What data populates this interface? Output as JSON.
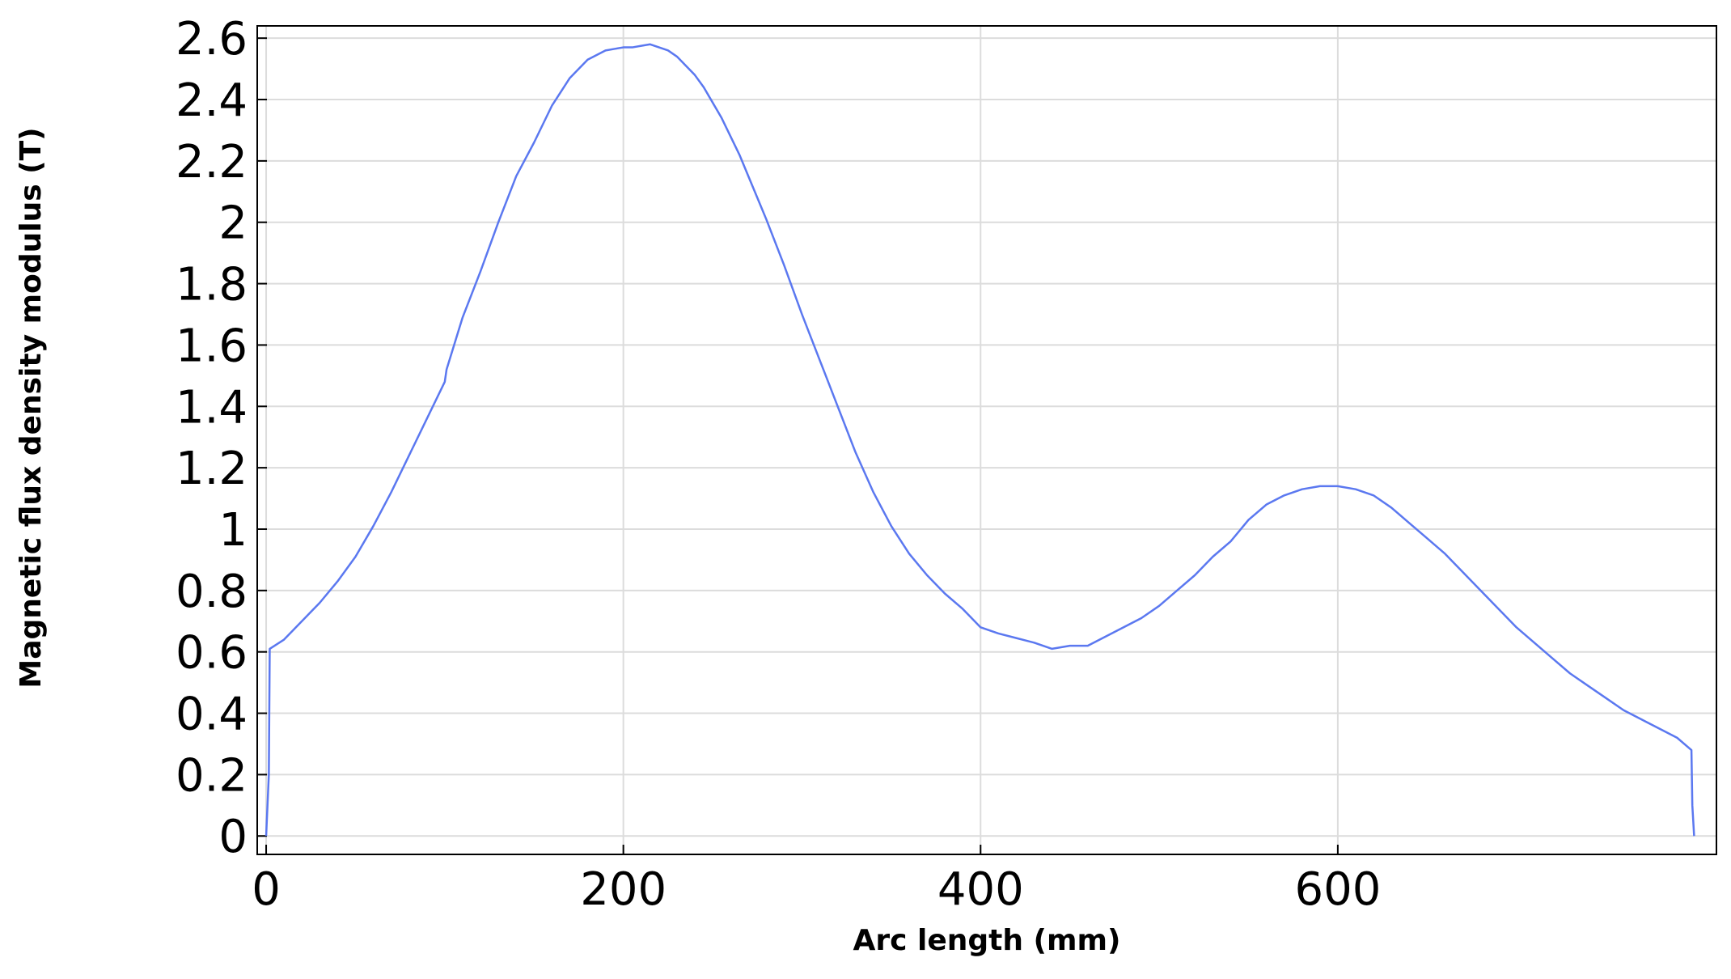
{
  "chart_data": {
    "type": "line",
    "title": "",
    "xlabel": "Arc length (mm)",
    "ylabel": "Magnetic flux density modulus (T)",
    "xlim": [
      -5,
      812
    ],
    "ylim": [
      -0.06,
      2.64
    ],
    "xticks": [
      0,
      200,
      400,
      600
    ],
    "xtick_labels": [
      "0",
      "200",
      "400",
      "600"
    ],
    "yticks": [
      0,
      0.2,
      0.4,
      0.6,
      0.8,
      1,
      1.2,
      1.4,
      1.6,
      1.8,
      2,
      2.2,
      2.4,
      2.6
    ],
    "ytick_labels": [
      "0",
      "0.2",
      "0.4",
      "0.6",
      "0.8",
      "1",
      "1.2",
      "1.4",
      "1.6",
      "1.8",
      "2",
      "2.2",
      "2.4",
      "2.6"
    ],
    "grid": true,
    "legend": "none",
    "colors": {
      "line": "#5b78f0",
      "grid": "#dcdcdc",
      "axis": "#000000"
    },
    "series": [
      {
        "x": [
          0,
          1.5,
          2,
          10,
          20,
          30,
          40,
          50,
          60,
          70,
          80,
          90,
          100,
          101,
          110,
          120,
          130,
          140,
          150,
          160,
          170,
          180,
          190,
          195,
          200,
          205,
          210,
          215,
          220,
          225,
          230,
          235,
          240,
          245,
          250,
          255,
          260,
          265,
          270,
          275,
          280,
          290,
          300,
          310,
          320,
          330,
          340,
          350,
          360,
          370,
          380,
          390,
          400,
          410,
          420,
          430,
          440,
          450,
          460,
          470,
          480,
          490,
          500,
          510,
          520,
          530,
          540,
          550,
          560,
          570,
          580,
          590,
          600,
          610,
          620,
          630,
          640,
          650,
          660,
          670,
          680,
          690,
          700,
          710,
          720,
          730,
          740,
          750,
          760,
          770,
          780,
          790,
          798,
          798.5,
          799.5
        ],
        "y": [
          0,
          0.2,
          0.61,
          0.64,
          0.7,
          0.76,
          0.83,
          0.91,
          1.01,
          1.12,
          1.24,
          1.36,
          1.48,
          1.52,
          1.69,
          1.84,
          2.0,
          2.15,
          2.26,
          2.38,
          2.47,
          2.53,
          2.56,
          2.565,
          2.57,
          2.57,
          2.575,
          2.58,
          2.57,
          2.56,
          2.54,
          2.51,
          2.48,
          2.44,
          2.39,
          2.34,
          2.28,
          2.22,
          2.15,
          2.08,
          2.01,
          1.86,
          1.7,
          1.55,
          1.4,
          1.25,
          1.12,
          1.01,
          0.92,
          0.85,
          0.79,
          0.74,
          0.68,
          0.66,
          0.645,
          0.63,
          0.61,
          0.62,
          0.62,
          0.65,
          0.68,
          0.71,
          0.75,
          0.8,
          0.85,
          0.91,
          0.96,
          1.03,
          1.08,
          1.11,
          1.13,
          1.14,
          1.14,
          1.13,
          1.11,
          1.07,
          1.02,
          0.97,
          0.92,
          0.86,
          0.8,
          0.74,
          0.68,
          0.63,
          0.58,
          0.53,
          0.49,
          0.45,
          0.41,
          0.38,
          0.35,
          0.32,
          0.28,
          0.1,
          0
        ]
      }
    ]
  }
}
